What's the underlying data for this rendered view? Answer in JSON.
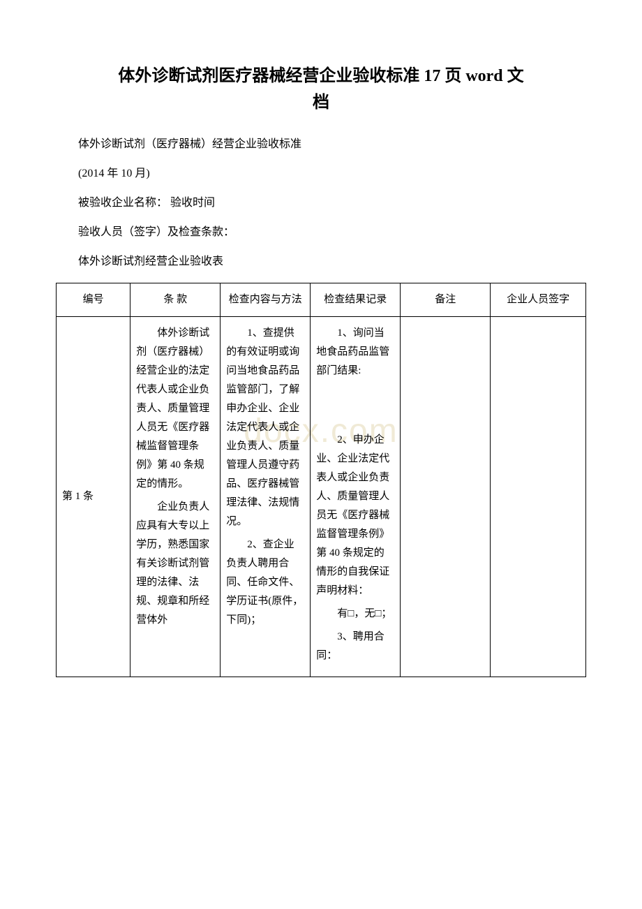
{
  "watermark": "docx.com",
  "title_line1": "体外诊断试剂医疗器械经营企业验收标准 17 页 word 文",
  "title_line2": "档",
  "paragraphs": {
    "p1": "体外诊断试剂（医疗器械）经营企业验收标准",
    "p2": "(2014 年 10 月)",
    "p3": "被验收企业名称：  验收时间",
    "p4": "验收人员（签字）及检查条款：",
    "p5": "体外诊断试剂经营企业验收表"
  },
  "table": {
    "headers": {
      "h1": "编号",
      "h2": "条 款",
      "h3": "检查内容与方法",
      "h4": "检查结果记录",
      "h5": "备注",
      "h6": "企业人员签字"
    },
    "row1": {
      "num": "第 1 条",
      "terms": "体外诊断试剂（医疗器械）经营企业的法定代表人或企业负责人、质量管理人员无《医疗器械监督管理条例》第 40 条规定的情形。\n企业负责人应具有大专以上学历，熟悉国家有关诊断试剂管理的法律、法规、规章和所经营体外",
      "method": "1、查提供的有效证明或询问当地食品药品监管部门，了解申办企业、企业法定代表人或企业负责人、质量管理人员遵守药品、医疗器械管理法律、法规情况。\n2、查企业负责人聘用合同、任命文件、学历证书(原件，下同)；",
      "result": "1、询问当地食品药品监管部门结果:\n\n\n2、申办企业、企业法定代表人或企业负责人、质量管理人员无《医疗器械监督管理条例》第 40 条规定的情形的自我保证声明材料：\n有□，无□；\n3、聘用合同：",
      "note": "",
      "sign": ""
    }
  }
}
